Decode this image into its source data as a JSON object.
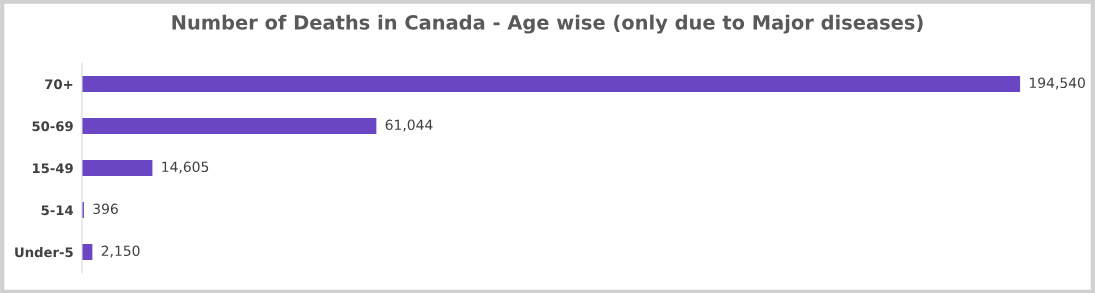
{
  "chart_data": {
    "type": "bar",
    "orientation": "horizontal",
    "title": "Number of Deaths in Canada - Age wise (only due to Major diseases)",
    "categories": [
      "70+",
      "50-69",
      "15-49",
      "5-14",
      "Under-5"
    ],
    "values": [
      194540,
      61044,
      14605,
      396,
      2150
    ],
    "value_labels": [
      "194,540",
      "61,044",
      "14,605",
      "396",
      "2,150"
    ],
    "color": "#6a46c4",
    "tick_labels": "y",
    "grid": false,
    "legend": false
  }
}
